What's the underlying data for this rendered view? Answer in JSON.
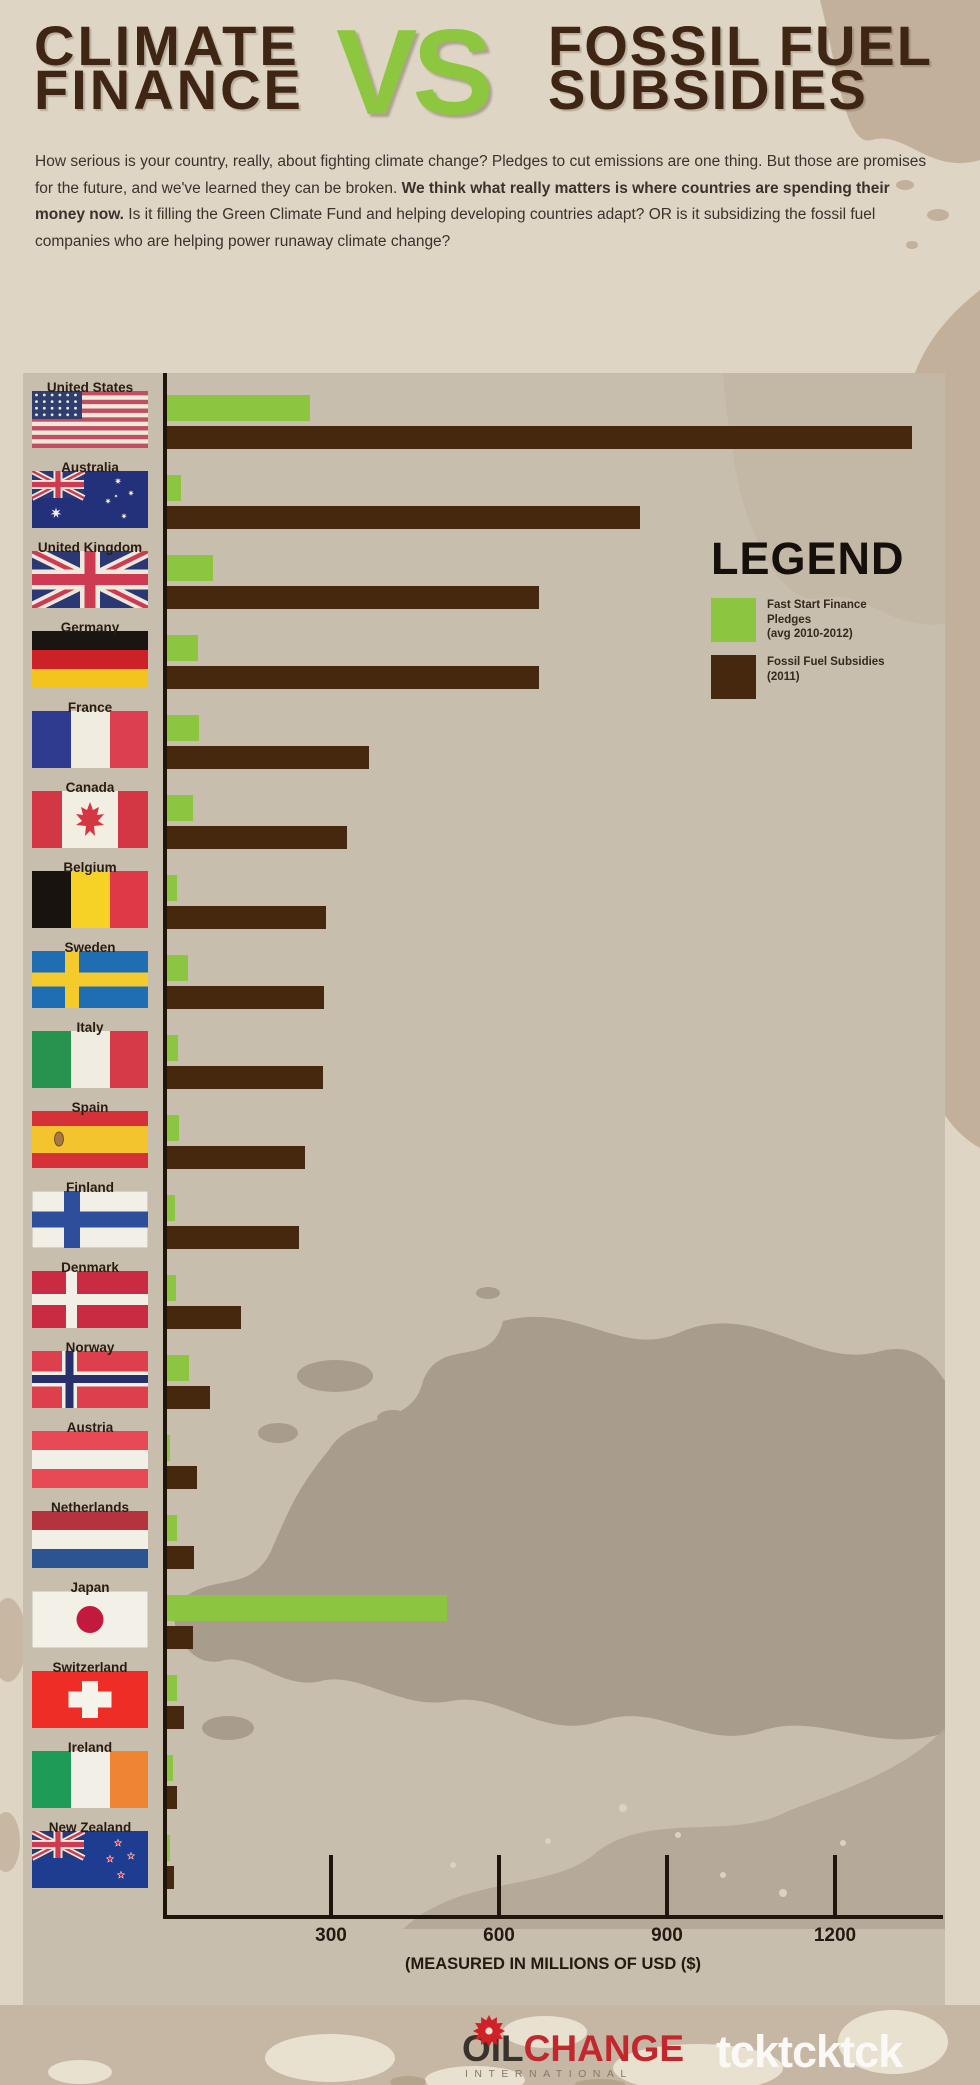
{
  "header": {
    "title_left_line1": "CLIMATE",
    "title_left_line2": "FINANCE",
    "vs": "VS",
    "title_right_line1": "FOSSIL FUEL",
    "title_right_line2": "SUBSIDIES"
  },
  "intro": {
    "part1": "How serious is your country, really, about fighting climate change? Pledges to cut emissions are one thing. But those are promises for the future, and we've learned they can be broken. ",
    "bold": "We think what really matters is where countries are spending their money now.",
    "part2": " Is it filling the Green Climate Fund and helping developing countries adapt? OR is it subsidizing the fossil fuel companies who are helping power runaway climate change?"
  },
  "legend": {
    "title": "LEGEND",
    "items": [
      {
        "label": "Fast Start Finance Pledges",
        "sublabel": "(avg 2010-2012)",
        "color": "#8cc640"
      },
      {
        "label": "Fossil Fuel Subsidies",
        "sublabel": "(2011)",
        "color": "#45280e"
      }
    ]
  },
  "chart_data": {
    "type": "bar",
    "orientation": "horizontal",
    "title": "Climate Finance vs Fossil Fuel Subsidies",
    "categories": [
      "United States",
      "Australia",
      "United Kingdom",
      "Germany",
      "France",
      "Canada",
      "Belgium",
      "Sweden",
      "Italy",
      "Spain",
      "Finland",
      "Denmark",
      "Norway",
      "Austria",
      "Netherlands",
      "Japan",
      "Switzerland",
      "Ireland",
      "New Zealand"
    ],
    "series": [
      {
        "name": "Fast Start Finance Pledges (avg 2010-2012)",
        "color": "#8cc640",
        "values": [
          255,
          25,
          82,
          55,
          57,
          46,
          18,
          37,
          20,
          21,
          14,
          16,
          40,
          5,
          18,
          500,
          17,
          10,
          5
        ]
      },
      {
        "name": "Fossil Fuel Subsidies (2011)",
        "color": "#45280e",
        "values": [
          1330,
          845,
          665,
          665,
          360,
          322,
          283,
          280,
          278,
          247,
          235,
          132,
          77,
          53,
          48,
          46,
          31,
          18,
          12
        ]
      }
    ],
    "x_ticks": [
      300,
      600,
      900,
      1200
    ],
    "xlim": [
      0,
      1390
    ],
    "xlabel": "(MEASURED IN MILLIONS OF USD ($)",
    "unit": "millions of USD",
    "grid": false,
    "legend_position": "upper right"
  },
  "footer": {
    "oil_change_line1": "OIL",
    "oil_change_line2": "CHANGE",
    "oil_change_line3": "INTERNATIONAL",
    "tcktcktck": "tcktcktck"
  }
}
